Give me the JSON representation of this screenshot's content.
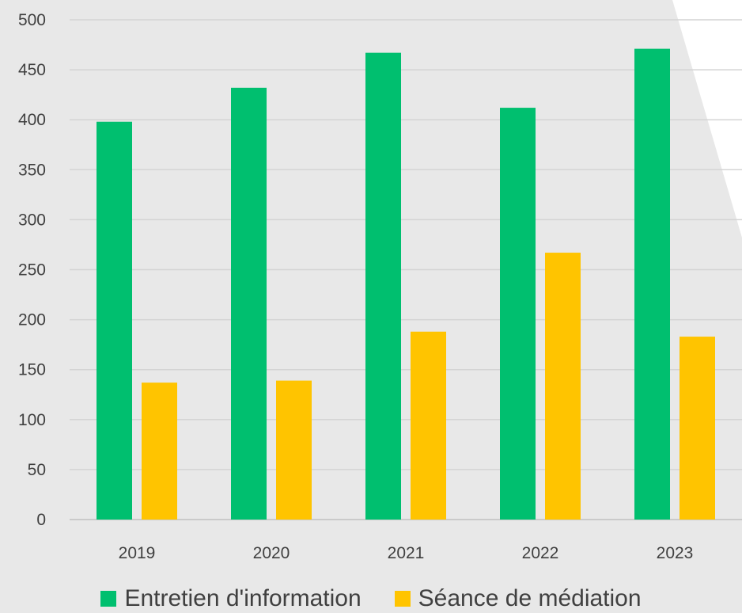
{
  "chart_data": {
    "type": "bar",
    "title": "",
    "xlabel": "",
    "ylabel": "",
    "categories": [
      "2019",
      "2020",
      "2021",
      "2022",
      "2023"
    ],
    "series": [
      {
        "name": "Entretien d'information",
        "color": "#00bf6f",
        "values": [
          398,
          432,
          467,
          412,
          471
        ]
      },
      {
        "name": "Séance de médiation",
        "color": "#ffc400",
        "values": [
          137,
          139,
          188,
          267,
          183
        ]
      }
    ],
    "ylim": [
      0,
      500
    ],
    "yticks": [
      0,
      50,
      100,
      150,
      200,
      250,
      300,
      350,
      400,
      450,
      500
    ],
    "grid": true,
    "legend_position": "bottom"
  }
}
